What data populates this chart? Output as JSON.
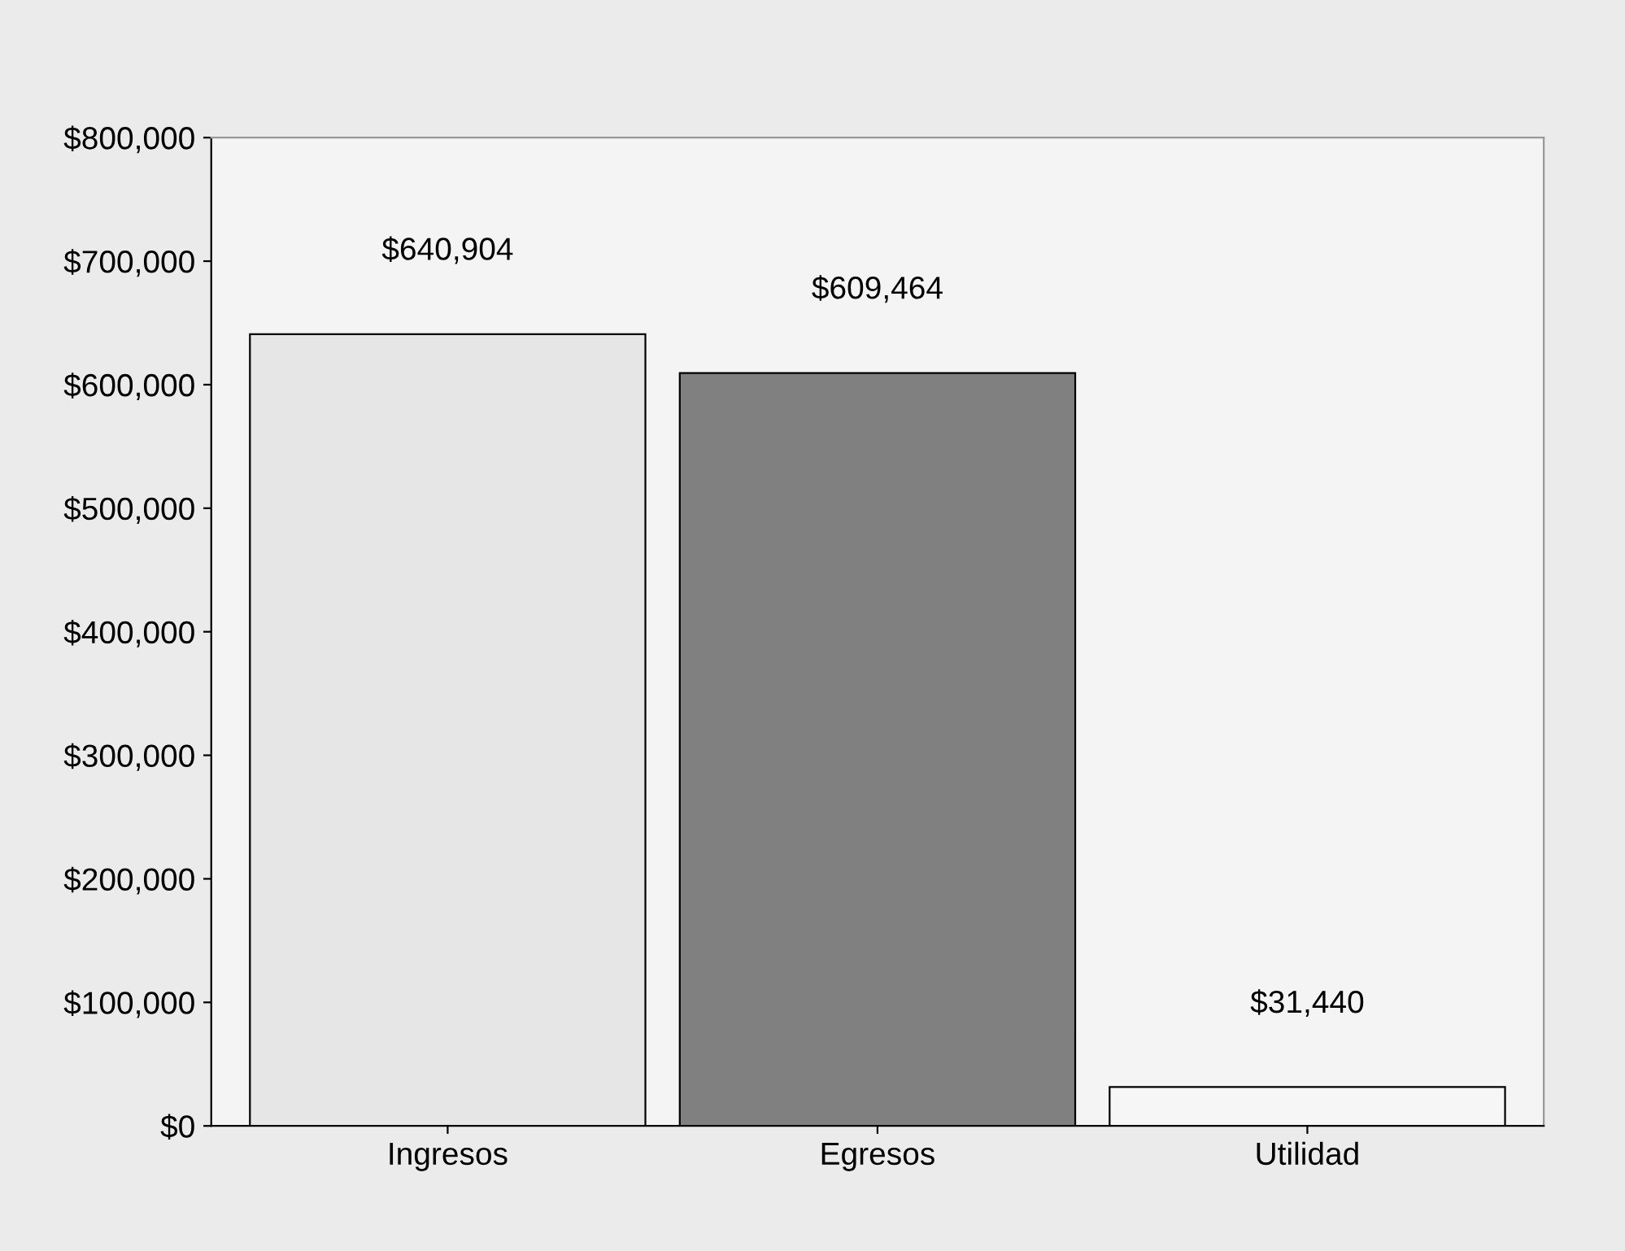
{
  "chart_data": {
    "type": "bar",
    "categories": [
      "Ingresos",
      "Egresos",
      "Utilidad"
    ],
    "values": [
      640904,
      609464,
      31440
    ],
    "colors": [
      "#e6e6e6",
      "#808080",
      "#f6f6f6"
    ],
    "value_labels": [
      "$640,904",
      "$609,464",
      "$31,440"
    ],
    "ylim": [
      0,
      800000
    ],
    "yticks": [
      {
        "value": 0,
        "label": "$0"
      },
      {
        "value": 100000,
        "label": "$100,000"
      },
      {
        "value": 200000,
        "label": "$200,000"
      },
      {
        "value": 300000,
        "label": "$300,000"
      },
      {
        "value": 400000,
        "label": "$400,000"
      },
      {
        "value": 500000,
        "label": "$500,000"
      },
      {
        "value": 600000,
        "label": "$600,000"
      },
      {
        "value": 700000,
        "label": "$700,000"
      },
      {
        "value": 800000,
        "label": "$800,000"
      }
    ],
    "grid": false,
    "legend": false
  }
}
